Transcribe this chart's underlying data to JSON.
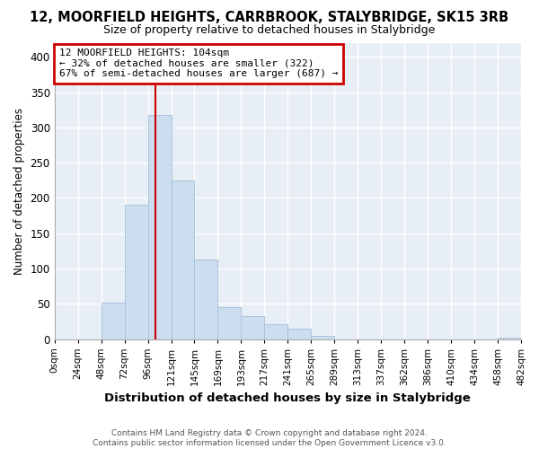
{
  "title": "12, MOORFIELD HEIGHTS, CARRBROOK, STALYBRIDGE, SK15 3RB",
  "subtitle": "Size of property relative to detached houses in Stalybridge",
  "xlabel": "Distribution of detached houses by size in Stalybridge",
  "ylabel": "Number of detached properties",
  "bar_color": "#ccddf0",
  "bar_edgecolor": "#aac4de",
  "vline_x": 104,
  "vline_color": "#cc0000",
  "annotation_title": "12 MOORFIELD HEIGHTS: 104sqm",
  "annotation_line1": "← 32% of detached houses are smaller (322)",
  "annotation_line2": "67% of semi-detached houses are larger (687) →",
  "annotation_box_facecolor": "white",
  "annotation_box_edgecolor": "#cc0000",
  "footnote1": "Contains HM Land Registry data © Crown copyright and database right 2024.",
  "footnote2": "Contains public sector information licensed under the Open Government Licence v3.0.",
  "bin_edges": [
    0,
    24,
    48,
    72,
    96,
    120,
    144,
    168,
    192,
    216,
    240,
    264,
    288,
    312,
    336,
    360,
    384,
    408,
    432,
    456,
    480
  ],
  "bin_labels": [
    "0sqm",
    "24sqm",
    "48sqm",
    "72sqm",
    "96sqm",
    "121sqm",
    "145sqm",
    "169sqm",
    "193sqm",
    "217sqm",
    "241sqm",
    "265sqm",
    "289sqm",
    "313sqm",
    "337sqm",
    "362sqm",
    "386sqm",
    "410sqm",
    "434sqm",
    "458sqm",
    "482sqm"
  ],
  "counts": [
    0,
    0,
    52,
    190,
    317,
    225,
    113,
    45,
    33,
    21,
    15,
    5,
    0,
    0,
    0,
    0,
    0,
    0,
    0,
    2
  ],
  "ylim": [
    0,
    420
  ],
  "yticks": [
    0,
    50,
    100,
    150,
    200,
    250,
    300,
    350,
    400
  ],
  "fig_bg": "#ffffff",
  "plot_bg": "#e8eef5",
  "grid_color": "#ffffff",
  "spine_color": "#aaaaaa"
}
